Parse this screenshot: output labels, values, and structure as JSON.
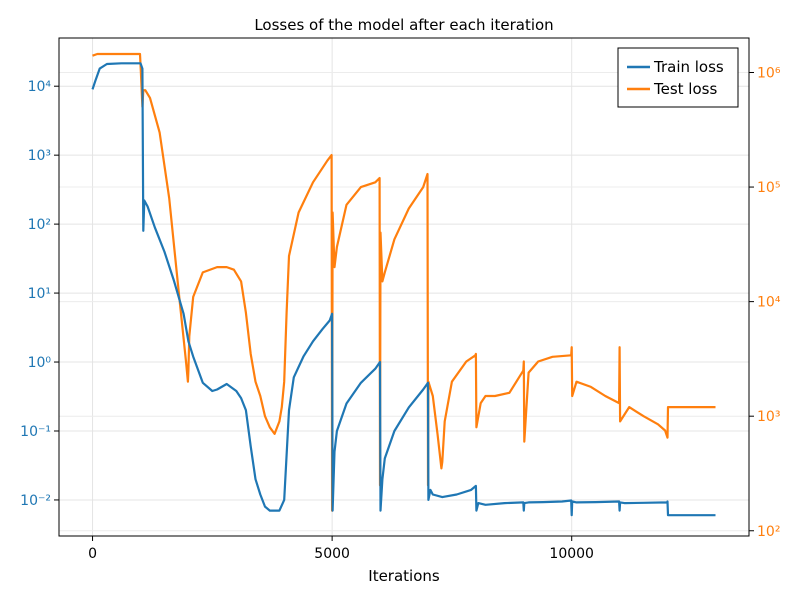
{
  "chart_data": {
    "type": "line",
    "title": "Losses of the model after each iteration",
    "xlabel": "Iterations",
    "ylabel": "",
    "x_ticks": [
      "0",
      "5000",
      "10000"
    ],
    "x_tick_values": [
      0,
      5000,
      10000
    ],
    "xlim": [
      -700,
      13700
    ],
    "left_axis": {
      "scale": "log",
      "ylim": [
        0.003,
        50000
      ],
      "ticks": [
        {
          "value": 0.01,
          "label": "10⁻²"
        },
        {
          "value": 0.1,
          "label": "10⁻¹"
        },
        {
          "value": 1,
          "label": "10⁰"
        },
        {
          "value": 10,
          "label": "10¹"
        },
        {
          "value": 100,
          "label": "10²"
        },
        {
          "value": 1000,
          "label": "10³"
        },
        {
          "value": 10000,
          "label": "10⁴"
        }
      ],
      "color": "#1f77b4"
    },
    "right_axis": {
      "scale": "log",
      "ylim": [
        90,
        2000000
      ],
      "ticks": [
        {
          "value": 100,
          "label": "10²"
        },
        {
          "value": 1000,
          "label": "10³"
        },
        {
          "value": 10000,
          "label": "10⁴"
        },
        {
          "value": 100000,
          "label": "10⁵"
        },
        {
          "value": 1000000,
          "label": "10⁶"
        }
      ],
      "color": "#ff7f0e"
    },
    "grid": true,
    "legend_position": "top-right",
    "series": [
      {
        "name": "Train loss",
        "axis": "left",
        "color": "#1f77b4",
        "x": [
          0,
          60,
          150,
          300,
          600,
          1000,
          1040,
          1060,
          1080,
          1150,
          1300,
          1500,
          1700,
          1900,
          2000,
          2100,
          2300,
          2500,
          2600,
          2800,
          3000,
          3100,
          3200,
          3300,
          3400,
          3500,
          3600,
          3700,
          3800,
          3900,
          4000,
          4100,
          4200,
          4400,
          4600,
          4800,
          4950,
          5000,
          5010,
          5050,
          5100,
          5300,
          5600,
          5900,
          6000,
          6010,
          6050,
          6100,
          6300,
          6600,
          6900,
          7000,
          7010,
          7050,
          7100,
          7300,
          7600,
          7900,
          8000,
          8010,
          8050,
          8200,
          8600,
          8990,
          9000,
          9010,
          9100,
          9400,
          9800,
          9990,
          10000,
          10010,
          10100,
          10500,
          10990,
          11000,
          11010,
          11100,
          11500,
          11990,
          12000,
          12010,
          12500,
          13000
        ],
        "y": [
          9000,
          12000,
          18000,
          21000,
          21500,
          21500,
          18000,
          80,
          220,
          180,
          90,
          40,
          15,
          5,
          2,
          1.2,
          0.5,
          0.38,
          0.4,
          0.48,
          0.38,
          0.3,
          0.2,
          0.06,
          0.02,
          0.012,
          0.008,
          0.007,
          0.007,
          0.007,
          0.01,
          0.2,
          0.6,
          1.2,
          2,
          3,
          4,
          5,
          0.007,
          0.05,
          0.1,
          0.25,
          0.5,
          0.8,
          1,
          0.007,
          0.02,
          0.04,
          0.1,
          0.22,
          0.4,
          0.5,
          0.01,
          0.014,
          0.012,
          0.011,
          0.012,
          0.014,
          0.016,
          0.007,
          0.009,
          0.0085,
          0.009,
          0.0092,
          0.007,
          0.009,
          0.0092,
          0.0093,
          0.0095,
          0.0098,
          0.006,
          0.0095,
          0.0092,
          0.0093,
          0.0095,
          0.007,
          0.0092,
          0.009,
          0.0091,
          0.0092,
          0.0095,
          0.006,
          0.006,
          0.006
        ]
      },
      {
        "name": "Test loss",
        "axis": "right",
        "color": "#ff7f0e",
        "x": [
          0,
          100,
          300,
          600,
          990,
          1010,
          1040,
          1060,
          1100,
          1200,
          1400,
          1600,
          1800,
          1950,
          1990,
          2000,
          2020,
          2100,
          2300,
          2600,
          2800,
          2950,
          3100,
          3200,
          3300,
          3400,
          3500,
          3600,
          3700,
          3800,
          3900,
          3950,
          4000,
          4050,
          4100,
          4300,
          4600,
          4900,
          4990,
          5000,
          5010,
          5050,
          5100,
          5300,
          5600,
          5900,
          5990,
          6000,
          6010,
          6050,
          6100,
          6300,
          6600,
          6900,
          6990,
          7000,
          7010,
          7100,
          7200,
          7280,
          7300,
          7350,
          7500,
          7800,
          7990,
          8000,
          8010,
          8100,
          8200,
          8400,
          8700,
          8990,
          9000,
          9010,
          9100,
          9300,
          9600,
          9990,
          10000,
          10010,
          10100,
          10400,
          10700,
          10990,
          11000,
          11010,
          11200,
          11500,
          11800,
          11950,
          12000,
          12010,
          12400,
          13000
        ],
        "y": [
          1400000,
          1450000,
          1450000,
          1450000,
          1450000,
          1000000,
          500000,
          700000,
          700000,
          600000,
          300000,
          80000,
          12000,
          3000,
          2000,
          2500,
          5000,
          11000,
          18000,
          20000,
          20000,
          19000,
          15000,
          8000,
          3500,
          2000,
          1500,
          1000,
          800,
          700,
          900,
          1200,
          2000,
          8000,
          25000,
          60000,
          110000,
          170000,
          190000,
          150,
          60000,
          20000,
          30000,
          70000,
          100000,
          110000,
          120000,
          250,
          40000,
          15000,
          18000,
          35000,
          65000,
          100000,
          130000,
          250,
          2000,
          1500,
          700,
          350,
          400,
          900,
          2000,
          3000,
          3400,
          3500,
          800,
          1300,
          1500,
          1500,
          1600,
          2500,
          3000,
          600,
          2400,
          3000,
          3300,
          3400,
          4000,
          1500,
          2000,
          1800,
          1500,
          1300,
          4000,
          900,
          1200,
          1000,
          850,
          750,
          650,
          1200,
          1200,
          1200
        ]
      }
    ],
    "legend": {
      "entries": [
        "Train loss",
        "Test loss"
      ]
    }
  }
}
